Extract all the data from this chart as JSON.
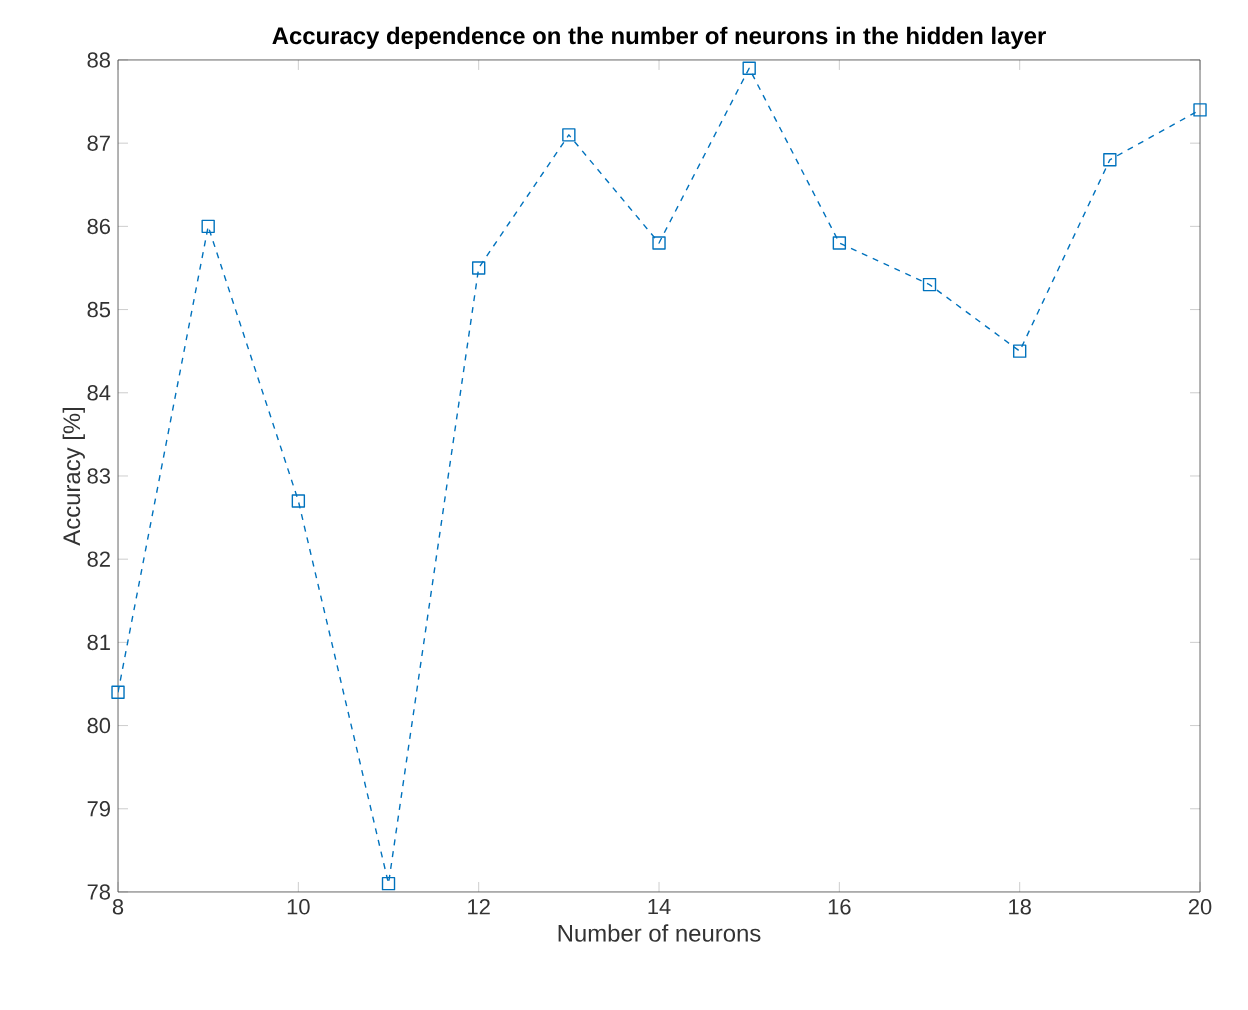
{
  "chart_data": {
    "type": "line",
    "title": "Accuracy dependence on the number of neurons in the hidden layer",
    "xlabel": "Number of neurons",
    "ylabel": "Accuracy [%]",
    "x": [
      8,
      9,
      10,
      11,
      12,
      13,
      14,
      15,
      16,
      17,
      18,
      19,
      20
    ],
    "series": [
      {
        "color": "#0072bd",
        "values": [
          80.4,
          86.0,
          82.7,
          78.1,
          85.5,
          87.1,
          85.8,
          87.9,
          85.8,
          85.3,
          84.5,
          86.8,
          87.4
        ]
      }
    ],
    "xlim": [
      8,
      20
    ],
    "ylim": [
      78,
      88
    ],
    "xticks": [
      8,
      10,
      12,
      14,
      16,
      18,
      20
    ],
    "yticks": [
      78,
      79,
      80,
      81,
      82,
      83,
      84,
      85,
      86,
      87,
      88
    ],
    "marker": "square",
    "line_style": "dashed"
  }
}
